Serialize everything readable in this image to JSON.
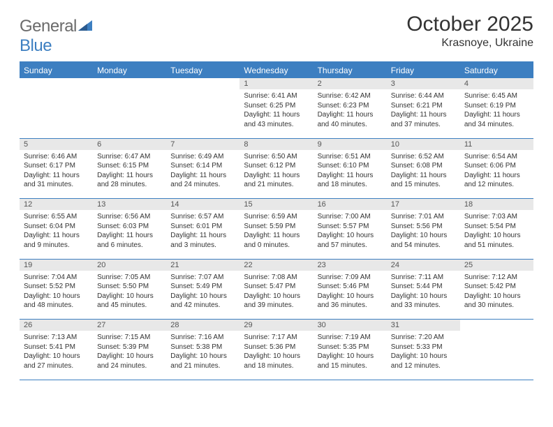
{
  "logo": {
    "text_general": "General",
    "text_blue": "Blue"
  },
  "title": "October 2025",
  "location": "Krasnoye, Ukraine",
  "colors": {
    "header_bg": "#3d7fc1",
    "header_text": "#ffffff",
    "daynum_bg": "#e8e8e8",
    "daynum_text": "#555555",
    "cell_text": "#333333",
    "border": "#3d7fc1",
    "logo_gray": "#6b6b6b",
    "logo_blue": "#3d7fc1"
  },
  "day_headers": [
    "Sunday",
    "Monday",
    "Tuesday",
    "Wednesday",
    "Thursday",
    "Friday",
    "Saturday"
  ],
  "weeks": [
    [
      {
        "n": "",
        "lines": []
      },
      {
        "n": "",
        "lines": []
      },
      {
        "n": "",
        "lines": []
      },
      {
        "n": "1",
        "lines": [
          "Sunrise: 6:41 AM",
          "Sunset: 6:25 PM",
          "Daylight: 11 hours",
          "and 43 minutes."
        ]
      },
      {
        "n": "2",
        "lines": [
          "Sunrise: 6:42 AM",
          "Sunset: 6:23 PM",
          "Daylight: 11 hours",
          "and 40 minutes."
        ]
      },
      {
        "n": "3",
        "lines": [
          "Sunrise: 6:44 AM",
          "Sunset: 6:21 PM",
          "Daylight: 11 hours",
          "and 37 minutes."
        ]
      },
      {
        "n": "4",
        "lines": [
          "Sunrise: 6:45 AM",
          "Sunset: 6:19 PM",
          "Daylight: 11 hours",
          "and 34 minutes."
        ]
      }
    ],
    [
      {
        "n": "5",
        "lines": [
          "Sunrise: 6:46 AM",
          "Sunset: 6:17 PM",
          "Daylight: 11 hours",
          "and 31 minutes."
        ]
      },
      {
        "n": "6",
        "lines": [
          "Sunrise: 6:47 AM",
          "Sunset: 6:15 PM",
          "Daylight: 11 hours",
          "and 28 minutes."
        ]
      },
      {
        "n": "7",
        "lines": [
          "Sunrise: 6:49 AM",
          "Sunset: 6:14 PM",
          "Daylight: 11 hours",
          "and 24 minutes."
        ]
      },
      {
        "n": "8",
        "lines": [
          "Sunrise: 6:50 AM",
          "Sunset: 6:12 PM",
          "Daylight: 11 hours",
          "and 21 minutes."
        ]
      },
      {
        "n": "9",
        "lines": [
          "Sunrise: 6:51 AM",
          "Sunset: 6:10 PM",
          "Daylight: 11 hours",
          "and 18 minutes."
        ]
      },
      {
        "n": "10",
        "lines": [
          "Sunrise: 6:52 AM",
          "Sunset: 6:08 PM",
          "Daylight: 11 hours",
          "and 15 minutes."
        ]
      },
      {
        "n": "11",
        "lines": [
          "Sunrise: 6:54 AM",
          "Sunset: 6:06 PM",
          "Daylight: 11 hours",
          "and 12 minutes."
        ]
      }
    ],
    [
      {
        "n": "12",
        "lines": [
          "Sunrise: 6:55 AM",
          "Sunset: 6:04 PM",
          "Daylight: 11 hours",
          "and 9 minutes."
        ]
      },
      {
        "n": "13",
        "lines": [
          "Sunrise: 6:56 AM",
          "Sunset: 6:03 PM",
          "Daylight: 11 hours",
          "and 6 minutes."
        ]
      },
      {
        "n": "14",
        "lines": [
          "Sunrise: 6:57 AM",
          "Sunset: 6:01 PM",
          "Daylight: 11 hours",
          "and 3 minutes."
        ]
      },
      {
        "n": "15",
        "lines": [
          "Sunrise: 6:59 AM",
          "Sunset: 5:59 PM",
          "Daylight: 11 hours",
          "and 0 minutes."
        ]
      },
      {
        "n": "16",
        "lines": [
          "Sunrise: 7:00 AM",
          "Sunset: 5:57 PM",
          "Daylight: 10 hours",
          "and 57 minutes."
        ]
      },
      {
        "n": "17",
        "lines": [
          "Sunrise: 7:01 AM",
          "Sunset: 5:56 PM",
          "Daylight: 10 hours",
          "and 54 minutes."
        ]
      },
      {
        "n": "18",
        "lines": [
          "Sunrise: 7:03 AM",
          "Sunset: 5:54 PM",
          "Daylight: 10 hours",
          "and 51 minutes."
        ]
      }
    ],
    [
      {
        "n": "19",
        "lines": [
          "Sunrise: 7:04 AM",
          "Sunset: 5:52 PM",
          "Daylight: 10 hours",
          "and 48 minutes."
        ]
      },
      {
        "n": "20",
        "lines": [
          "Sunrise: 7:05 AM",
          "Sunset: 5:50 PM",
          "Daylight: 10 hours",
          "and 45 minutes."
        ]
      },
      {
        "n": "21",
        "lines": [
          "Sunrise: 7:07 AM",
          "Sunset: 5:49 PM",
          "Daylight: 10 hours",
          "and 42 minutes."
        ]
      },
      {
        "n": "22",
        "lines": [
          "Sunrise: 7:08 AM",
          "Sunset: 5:47 PM",
          "Daylight: 10 hours",
          "and 39 minutes."
        ]
      },
      {
        "n": "23",
        "lines": [
          "Sunrise: 7:09 AM",
          "Sunset: 5:46 PM",
          "Daylight: 10 hours",
          "and 36 minutes."
        ]
      },
      {
        "n": "24",
        "lines": [
          "Sunrise: 7:11 AM",
          "Sunset: 5:44 PM",
          "Daylight: 10 hours",
          "and 33 minutes."
        ]
      },
      {
        "n": "25",
        "lines": [
          "Sunrise: 7:12 AM",
          "Sunset: 5:42 PM",
          "Daylight: 10 hours",
          "and 30 minutes."
        ]
      }
    ],
    [
      {
        "n": "26",
        "lines": [
          "Sunrise: 7:13 AM",
          "Sunset: 5:41 PM",
          "Daylight: 10 hours",
          "and 27 minutes."
        ]
      },
      {
        "n": "27",
        "lines": [
          "Sunrise: 7:15 AM",
          "Sunset: 5:39 PM",
          "Daylight: 10 hours",
          "and 24 minutes."
        ]
      },
      {
        "n": "28",
        "lines": [
          "Sunrise: 7:16 AM",
          "Sunset: 5:38 PM",
          "Daylight: 10 hours",
          "and 21 minutes."
        ]
      },
      {
        "n": "29",
        "lines": [
          "Sunrise: 7:17 AM",
          "Sunset: 5:36 PM",
          "Daylight: 10 hours",
          "and 18 minutes."
        ]
      },
      {
        "n": "30",
        "lines": [
          "Sunrise: 7:19 AM",
          "Sunset: 5:35 PM",
          "Daylight: 10 hours",
          "and 15 minutes."
        ]
      },
      {
        "n": "31",
        "lines": [
          "Sunrise: 7:20 AM",
          "Sunset: 5:33 PM",
          "Daylight: 10 hours",
          "and 12 minutes."
        ]
      },
      {
        "n": "",
        "lines": []
      }
    ]
  ]
}
